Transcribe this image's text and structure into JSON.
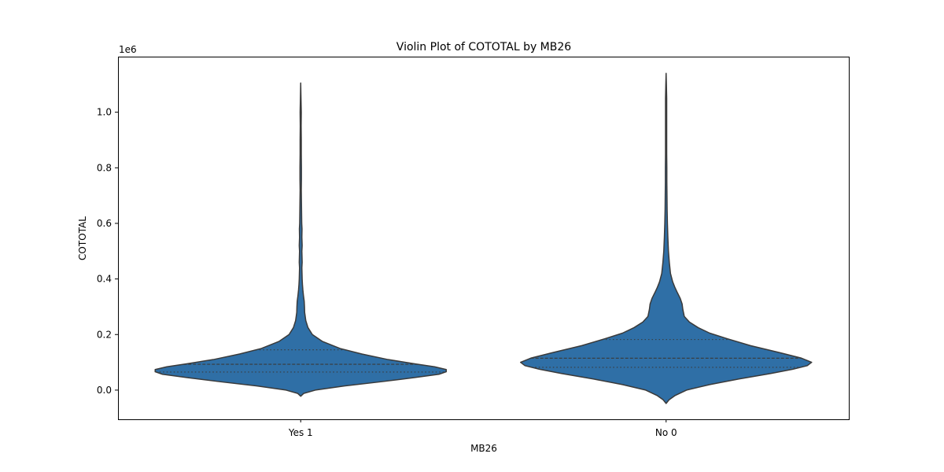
{
  "chart_data": {
    "type": "violin",
    "title": "Violin Plot of COTOTAL by MB26",
    "xlabel": "MB26",
    "ylabel": "COTOTAL",
    "y_offset_label": "1e6",
    "categories": [
      "Yes 1",
      "No 0"
    ],
    "ylim": [
      -105000,
      1200000
    ],
    "yticks": [
      0,
      200000,
      400000,
      600000,
      800000,
      1000000
    ],
    "ytick_labels": [
      "0.0",
      "0.2",
      "0.4",
      "0.6",
      "0.8",
      "1.0"
    ],
    "inner": "quartile",
    "color": "#2f6fa6",
    "edge_color": "#3a3a3a",
    "grid": false,
    "violins": [
      {
        "category": "Yes 1",
        "q1": 65000,
        "median": 93000,
        "q3": 145000,
        "min_extent": -22000,
        "max_extent": 1105000,
        "profile": [
          [
            -22000,
            0.0
          ],
          [
            -12000,
            0.02
          ],
          [
            0,
            0.1
          ],
          [
            15000,
            0.3
          ],
          [
            30000,
            0.55
          ],
          [
            45000,
            0.78
          ],
          [
            57000,
            0.95
          ],
          [
            66000,
            1.0
          ],
          [
            74000,
            1.0
          ],
          [
            84000,
            0.92
          ],
          [
            95000,
            0.78
          ],
          [
            110000,
            0.6
          ],
          [
            130000,
            0.42
          ],
          [
            150000,
            0.27
          ],
          [
            175000,
            0.15
          ],
          [
            200000,
            0.08
          ],
          [
            225000,
            0.05
          ],
          [
            250000,
            0.035
          ],
          [
            280000,
            0.027
          ],
          [
            300000,
            0.026
          ],
          [
            320000,
            0.024
          ],
          [
            340000,
            0.019
          ],
          [
            360000,
            0.015
          ],
          [
            380000,
            0.012
          ],
          [
            400000,
            0.01
          ],
          [
            420000,
            0.009
          ],
          [
            440000,
            0.008
          ],
          [
            460000,
            0.01
          ],
          [
            480000,
            0.009
          ],
          [
            500000,
            0.008
          ],
          [
            520000,
            0.01
          ],
          [
            550000,
            0.008
          ],
          [
            580000,
            0.009
          ],
          [
            600000,
            0.007
          ],
          [
            640000,
            0.006
          ],
          [
            680000,
            0.005
          ],
          [
            720000,
            0.004
          ],
          [
            760000,
            0.005
          ],
          [
            800000,
            0.005
          ],
          [
            850000,
            0.004
          ],
          [
            900000,
            0.004
          ],
          [
            950000,
            0.003
          ],
          [
            1000000,
            0.004
          ],
          [
            1050000,
            0.002
          ],
          [
            1105000,
            0.0
          ]
        ]
      },
      {
        "category": "No 0",
        "q1": 82000,
        "median": 115000,
        "q3": 182000,
        "min_extent": -48000,
        "max_extent": 1140000,
        "profile": [
          [
            -48000,
            0.0
          ],
          [
            -35000,
            0.02
          ],
          [
            -20000,
            0.06
          ],
          [
            0,
            0.14
          ],
          [
            20000,
            0.3
          ],
          [
            40000,
            0.5
          ],
          [
            60000,
            0.72
          ],
          [
            75000,
            0.87
          ],
          [
            88000,
            0.97
          ],
          [
            100000,
            1.0
          ],
          [
            115000,
            0.93
          ],
          [
            135000,
            0.78
          ],
          [
            160000,
            0.58
          ],
          [
            185000,
            0.42
          ],
          [
            205000,
            0.3
          ],
          [
            225000,
            0.22
          ],
          [
            245000,
            0.16
          ],
          [
            265000,
            0.125
          ],
          [
            290000,
            0.115
          ],
          [
            310000,
            0.11
          ],
          [
            330000,
            0.097
          ],
          [
            350000,
            0.078
          ],
          [
            370000,
            0.06
          ],
          [
            390000,
            0.045
          ],
          [
            420000,
            0.03
          ],
          [
            460000,
            0.022
          ],
          [
            500000,
            0.016
          ],
          [
            550000,
            0.012
          ],
          [
            600000,
            0.009
          ],
          [
            650000,
            0.007
          ],
          [
            700000,
            0.006
          ],
          [
            750000,
            0.005
          ],
          [
            800000,
            0.005
          ],
          [
            850000,
            0.004
          ],
          [
            900000,
            0.004
          ],
          [
            950000,
            0.004
          ],
          [
            1000000,
            0.004
          ],
          [
            1050000,
            0.004
          ],
          [
            1100000,
            0.002
          ],
          [
            1140000,
            0.0
          ]
        ]
      }
    ]
  }
}
